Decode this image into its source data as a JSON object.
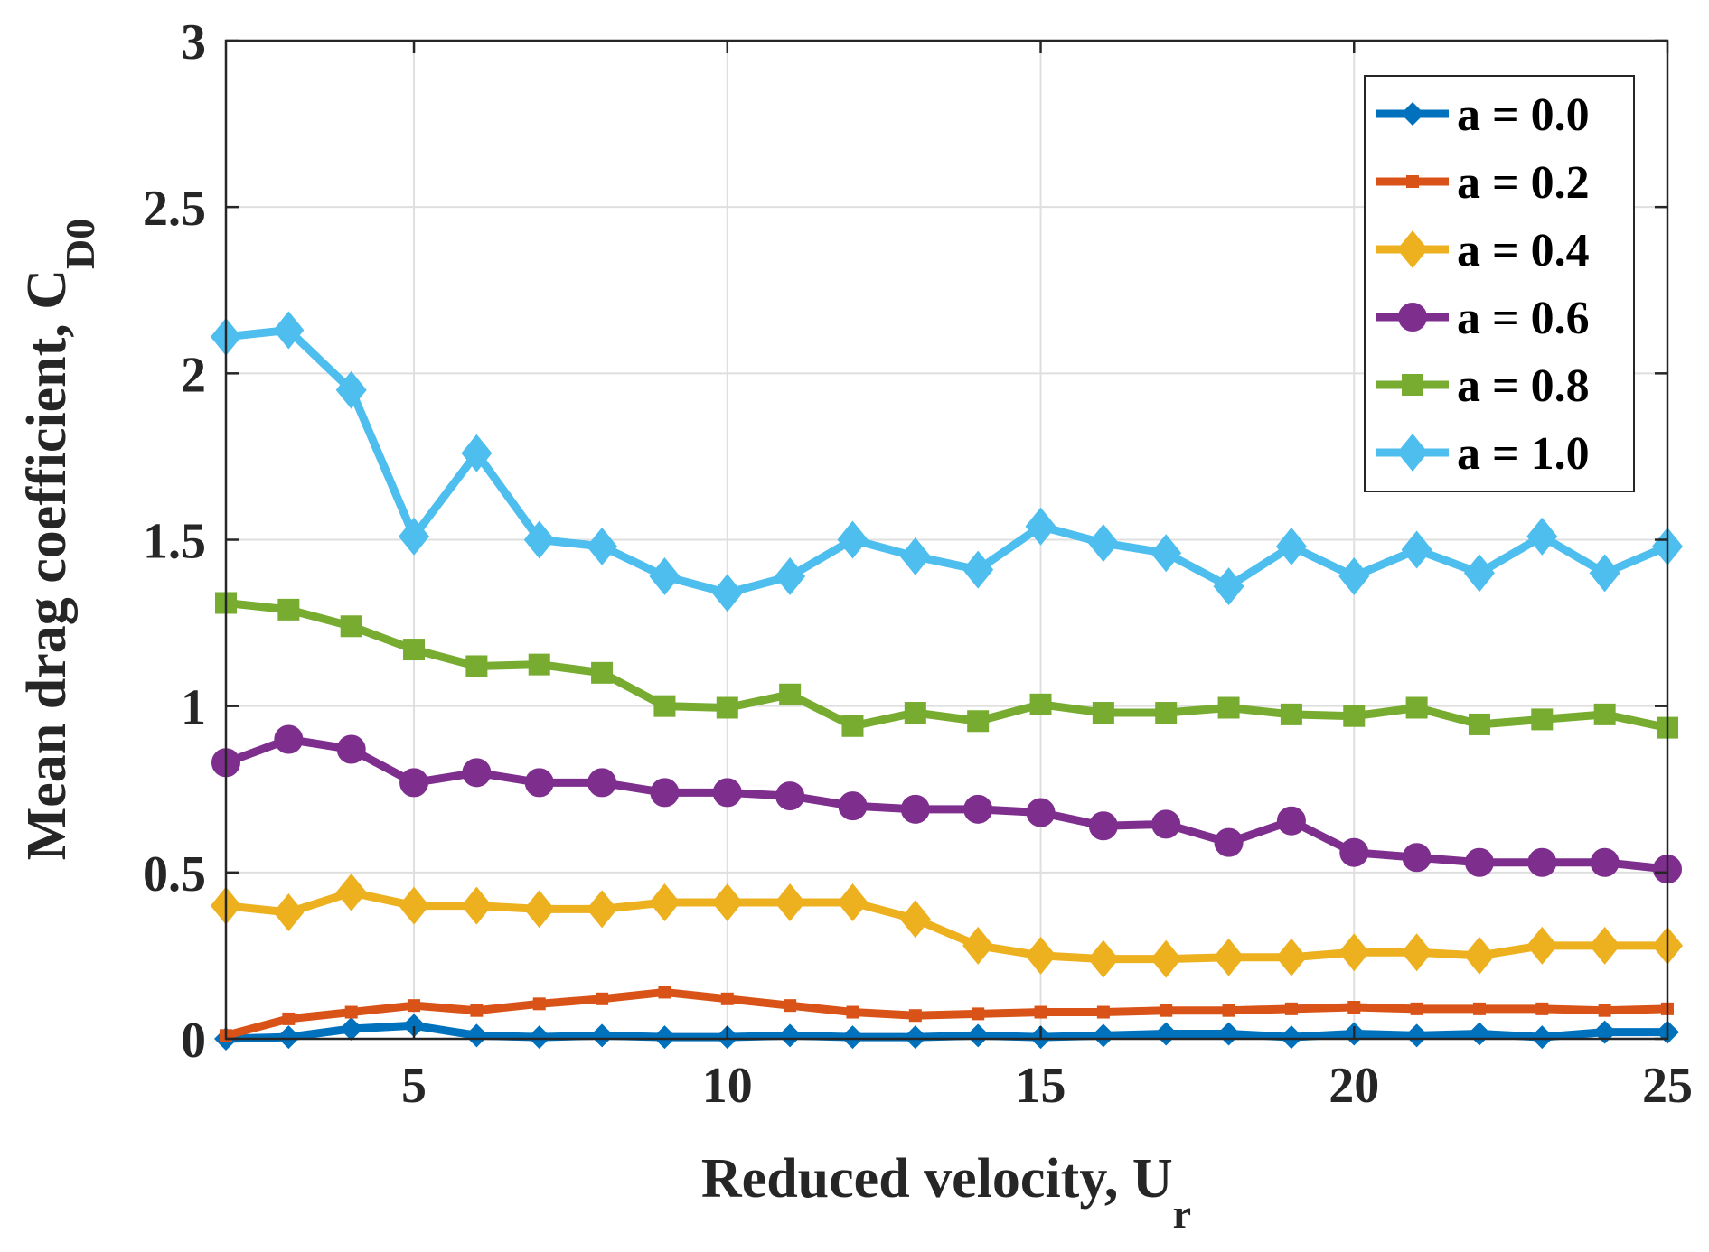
{
  "chart_data": {
    "type": "line",
    "title": "",
    "xlabel": "Reduced velocity, U",
    "xlabel_sub": "r",
    "ylabel": "Mean drag coefficient, C",
    "ylabel_sub": "D0",
    "xlim": [
      2,
      25
    ],
    "ylim": [
      0,
      3
    ],
    "xticks": [
      5,
      10,
      15,
      20,
      25
    ],
    "xtick_labels": [
      "5",
      "10",
      "15",
      "20",
      "25"
    ],
    "yticks": [
      0,
      0.5,
      1,
      1.5,
      2,
      2.5,
      3
    ],
    "ytick_labels": [
      "0",
      "0.5",
      "1",
      "1.5",
      "2",
      "2.5",
      "3"
    ],
    "grid": true,
    "legend_position": "top-right",
    "x": [
      2,
      3,
      4,
      5,
      6,
      7,
      8,
      9,
      10,
      11,
      12,
      13,
      14,
      15,
      16,
      17,
      18,
      19,
      20,
      21,
      22,
      23,
      24,
      25
    ],
    "series": [
      {
        "name": "a = 0.0",
        "color": "#0072BD",
        "marker": "asterisk",
        "values": [
          0.0,
          0.005,
          0.03,
          0.04,
          0.01,
          0.005,
          0.01,
          0.005,
          0.005,
          0.01,
          0.005,
          0.005,
          0.01,
          0.005,
          0.01,
          0.015,
          0.015,
          0.005,
          0.015,
          0.01,
          0.015,
          0.005,
          0.02,
          0.02
        ]
      },
      {
        "name": "a = 0.2",
        "color": "#D95319",
        "marker": "point",
        "values": [
          0.01,
          0.06,
          0.08,
          0.1,
          0.085,
          0.105,
          0.12,
          0.14,
          0.12,
          0.1,
          0.08,
          0.07,
          0.075,
          0.08,
          0.08,
          0.085,
          0.085,
          0.09,
          0.095,
          0.09,
          0.09,
          0.09,
          0.085,
          0.09
        ]
      },
      {
        "name": "a = 0.4",
        "color": "#EDB120",
        "marker": "diamond",
        "values": [
          0.4,
          0.38,
          0.44,
          0.4,
          0.4,
          0.39,
          0.39,
          0.41,
          0.41,
          0.41,
          0.41,
          0.36,
          0.28,
          0.25,
          0.24,
          0.24,
          0.245,
          0.245,
          0.26,
          0.26,
          0.25,
          0.28,
          0.28,
          0.28
        ]
      },
      {
        "name": "a = 0.6",
        "color": "#7E2F8E",
        "marker": "circle",
        "values": [
          0.83,
          0.9,
          0.87,
          0.77,
          0.8,
          0.77,
          0.77,
          0.74,
          0.74,
          0.73,
          0.7,
          0.69,
          0.69,
          0.68,
          0.64,
          0.645,
          0.59,
          0.655,
          0.56,
          0.545,
          0.53,
          0.53,
          0.53,
          0.51
        ]
      },
      {
        "name": "a = 0.8",
        "color": "#77AC30",
        "marker": "square",
        "values": [
          1.31,
          1.29,
          1.24,
          1.17,
          1.12,
          1.125,
          1.1,
          1.0,
          0.995,
          1.035,
          0.94,
          0.98,
          0.955,
          1.005,
          0.98,
          0.98,
          0.995,
          0.975,
          0.97,
          0.995,
          0.945,
          0.96,
          0.975,
          0.935
        ]
      },
      {
        "name": "a = 1.0",
        "color": "#4DBEEE",
        "marker": "diamond",
        "values": [
          2.11,
          2.13,
          1.95,
          1.51,
          1.76,
          1.5,
          1.48,
          1.39,
          1.34,
          1.39,
          1.5,
          1.45,
          1.41,
          1.54,
          1.49,
          1.46,
          1.36,
          1.48,
          1.39,
          1.47,
          1.4,
          1.51,
          1.4,
          1.48
        ]
      }
    ]
  }
}
